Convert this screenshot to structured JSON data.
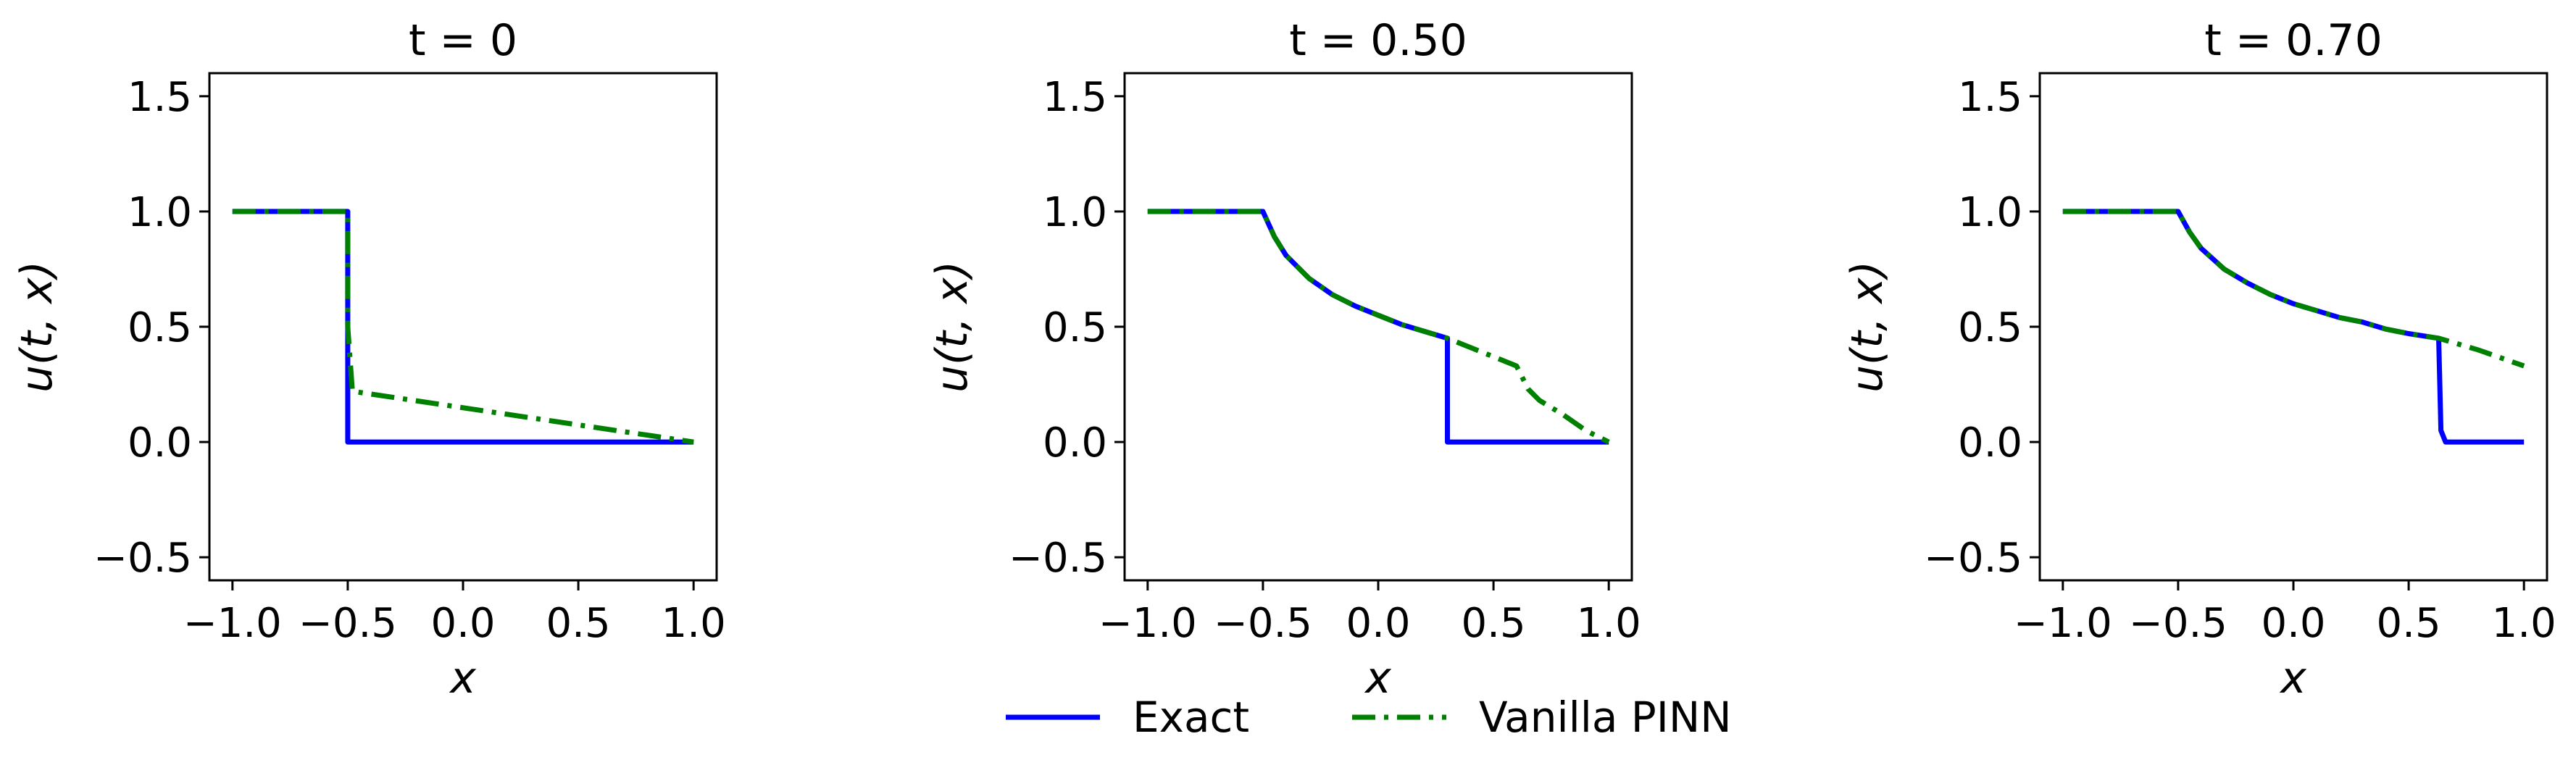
{
  "chart_data": [
    {
      "type": "line",
      "title": "t = 0",
      "xlabel": "x",
      "ylabel": "u(t, x)",
      "xlim": [
        -1.1,
        1.1
      ],
      "ylim": [
        -0.6,
        1.6
      ],
      "xticks": [
        "−1.0",
        "−0.5",
        "0.0",
        "0.5",
        "1.0"
      ],
      "yticks": [
        "−0.5",
        "0.0",
        "0.5",
        "1.0",
        "1.5"
      ],
      "grid": false,
      "series": [
        {
          "name": "Exact",
          "style": "solid",
          "color": "#0000ff",
          "x": [
            -1.0,
            -0.5,
            -0.5,
            1.0
          ],
          "y": [
            1.0,
            1.0,
            0.0,
            0.0
          ]
        },
        {
          "name": "Vanilla PINN",
          "style": "dashdot",
          "color": "#008000",
          "x": [
            -1.0,
            -0.5,
            -0.5,
            -0.48,
            1.0
          ],
          "y": [
            1.0,
            1.0,
            0.5,
            0.22,
            0.0
          ]
        }
      ]
    },
    {
      "type": "line",
      "title": "t = 0.50",
      "xlabel": "x",
      "ylabel": "u(t, x)",
      "xlim": [
        -1.1,
        1.1
      ],
      "ylim": [
        -0.6,
        1.6
      ],
      "xticks": [
        "−1.0",
        "−0.5",
        "0.0",
        "0.5",
        "1.0"
      ],
      "yticks": [
        "−0.5",
        "0.0",
        "0.5",
        "1.0",
        "1.5"
      ],
      "grid": false,
      "series": [
        {
          "name": "Exact",
          "style": "solid",
          "color": "#0000ff",
          "x": [
            -1.0,
            -0.5,
            -0.45,
            -0.4,
            -0.3,
            -0.2,
            -0.1,
            0.0,
            0.1,
            0.2,
            0.3,
            0.3,
            1.0
          ],
          "y": [
            1.0,
            1.0,
            0.89,
            0.81,
            0.71,
            0.64,
            0.59,
            0.55,
            0.51,
            0.48,
            0.45,
            0.0,
            0.0
          ]
        },
        {
          "name": "Vanilla PINN",
          "style": "dashdot",
          "color": "#008000",
          "x": [
            -1.0,
            -0.5,
            -0.45,
            -0.4,
            -0.3,
            -0.2,
            -0.1,
            0.0,
            0.1,
            0.2,
            0.3,
            0.45,
            0.6,
            0.65,
            0.7,
            0.8,
            0.9,
            1.0
          ],
          "y": [
            1.0,
            1.0,
            0.89,
            0.81,
            0.71,
            0.64,
            0.59,
            0.55,
            0.51,
            0.48,
            0.45,
            0.39,
            0.33,
            0.23,
            0.18,
            0.12,
            0.05,
            0.0
          ]
        }
      ]
    },
    {
      "type": "line",
      "title": "t = 0.70",
      "xlabel": "x",
      "ylabel": "u(t, x)",
      "xlim": [
        -1.1,
        1.1
      ],
      "ylim": [
        -0.6,
        1.6
      ],
      "xticks": [
        "−1.0",
        "−0.5",
        "0.0",
        "0.5",
        "1.0"
      ],
      "yticks": [
        "−0.5",
        "0.0",
        "0.5",
        "1.0",
        "1.5"
      ],
      "grid": false,
      "series": [
        {
          "name": "Exact",
          "style": "solid",
          "color": "#0000ff",
          "x": [
            -1.0,
            -0.5,
            -0.45,
            -0.4,
            -0.3,
            -0.2,
            -0.1,
            0.0,
            0.1,
            0.2,
            0.3,
            0.4,
            0.5,
            0.63,
            0.64,
            0.66,
            1.0
          ],
          "y": [
            1.0,
            1.0,
            0.91,
            0.84,
            0.75,
            0.69,
            0.64,
            0.6,
            0.57,
            0.54,
            0.52,
            0.49,
            0.47,
            0.45,
            0.05,
            0.0,
            0.0
          ]
        },
        {
          "name": "Vanilla PINN",
          "style": "dashdot",
          "color": "#008000",
          "x": [
            -1.0,
            -0.5,
            -0.45,
            -0.4,
            -0.3,
            -0.2,
            -0.1,
            0.0,
            0.1,
            0.2,
            0.3,
            0.4,
            0.5,
            0.63,
            0.8,
            1.0
          ],
          "y": [
            1.0,
            1.0,
            0.91,
            0.84,
            0.75,
            0.69,
            0.64,
            0.6,
            0.57,
            0.54,
            0.52,
            0.49,
            0.47,
            0.45,
            0.4,
            0.33
          ]
        }
      ]
    }
  ],
  "legend": {
    "placement": "bottom-center",
    "entries": [
      {
        "label": "Exact",
        "style": "solid",
        "color": "#0000ff"
      },
      {
        "label": "Vanilla PINN",
        "style": "dashdot",
        "color": "#008000"
      }
    ]
  }
}
